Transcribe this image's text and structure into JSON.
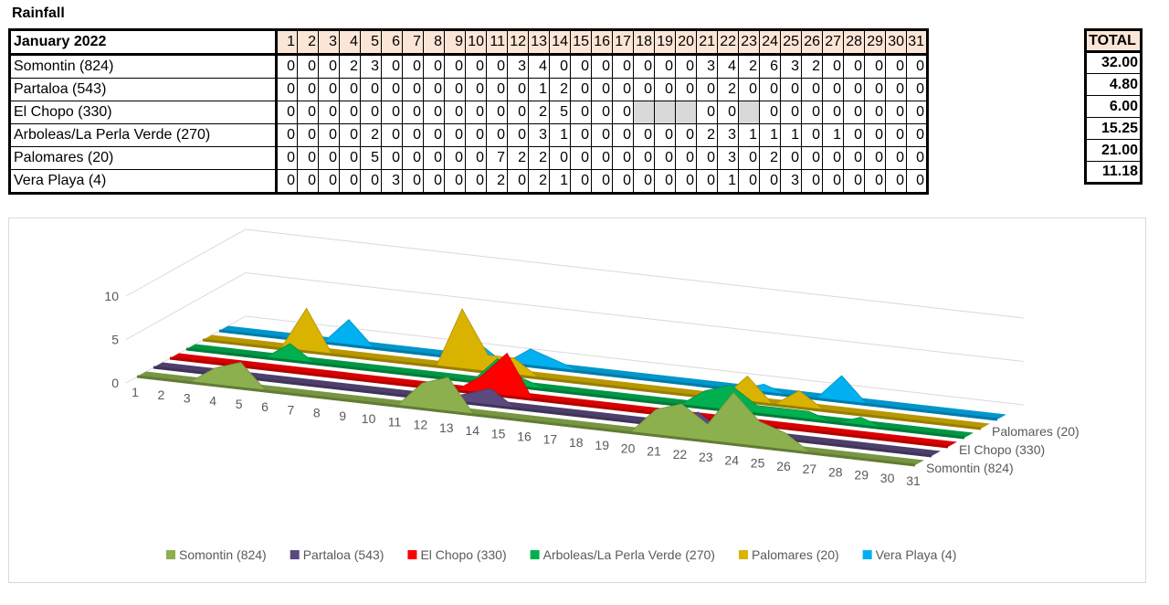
{
  "title": "Rainfall",
  "table": {
    "month_label": "January 2022",
    "days": [
      "1",
      "2",
      "3",
      "4",
      "5",
      "6",
      "7",
      "8",
      "9",
      "10",
      "11",
      "12",
      "13",
      "14",
      "15",
      "16",
      "17",
      "18",
      "19",
      "20",
      "21",
      "22",
      "23",
      "24",
      "25",
      "26",
      "27",
      "28",
      "29",
      "30",
      "31"
    ],
    "total_label": "TOTAL",
    "rows": [
      {
        "name": "Somontin (824)",
        "values": [
          "0",
          "0",
          "0",
          "2",
          "3",
          "0",
          "0",
          "0",
          "0",
          "0",
          "0",
          "3",
          "4",
          "0",
          "0",
          "0",
          "0",
          "0",
          "0",
          "0",
          "3",
          "4",
          "2",
          "6",
          "3",
          "2",
          "0",
          "0",
          "0",
          "0",
          "0"
        ],
        "total": "32.00"
      },
      {
        "name": "Partaloa (543)",
        "values": [
          "0",
          "0",
          "0",
          "0",
          "0",
          "0",
          "0",
          "0",
          "0",
          "0",
          "0",
          "0",
          "1",
          "2",
          "0",
          "0",
          "0",
          "0",
          "0",
          "0",
          "0",
          "2",
          "0",
          "0",
          "0",
          "0",
          "0",
          "0",
          "0",
          "0",
          "0"
        ],
        "total": "4.80"
      },
      {
        "name": "El Chopo (330)",
        "values": [
          "0",
          "0",
          "0",
          "0",
          "0",
          "0",
          "0",
          "0",
          "0",
          "0",
          "0",
          "0",
          "2",
          "5",
          "0",
          "0",
          "0",
          "",
          "",
          "",
          "0",
          "0",
          "",
          "0",
          "0",
          "0",
          "0",
          "0",
          "0",
          "0",
          "0"
        ],
        "total": "6.00"
      },
      {
        "name": "Arboleas/La Perla Verde (270)",
        "values": [
          "0",
          "0",
          "0",
          "0",
          "2",
          "0",
          "0",
          "0",
          "0",
          "0",
          "0",
          "0",
          "3",
          "1",
          "0",
          "0",
          "0",
          "0",
          "0",
          "0",
          "2",
          "3",
          "1",
          "1",
          "1",
          "0",
          "1",
          "0",
          "0",
          "0",
          "0"
        ],
        "total": "15.25"
      },
      {
        "name": "Palomares (20)",
        "values": [
          "0",
          "0",
          "0",
          "0",
          "5",
          "0",
          "0",
          "0",
          "0",
          "0",
          "7",
          "2",
          "2",
          "0",
          "0",
          "0",
          "0",
          "0",
          "0",
          "0",
          "0",
          "3",
          "0",
          "2",
          "0",
          "0",
          "0",
          "0",
          "0",
          "0",
          "0"
        ],
        "total": "21.00"
      },
      {
        "name": "Vera Playa (4)",
        "values": [
          "0",
          "0",
          "0",
          "0",
          "0",
          "3",
          "0",
          "0",
          "0",
          "0",
          "2",
          "0",
          "2",
          "1",
          "0",
          "0",
          "0",
          "0",
          "0",
          "0",
          "0",
          "1",
          "0",
          "0",
          "3",
          "0",
          "0",
          "0",
          "0",
          "0",
          "0"
        ],
        "total": "11.18"
      }
    ]
  },
  "chart_data": {
    "type": "area",
    "x": [
      1,
      2,
      3,
      4,
      5,
      6,
      7,
      8,
      9,
      10,
      11,
      12,
      13,
      14,
      15,
      16,
      17,
      18,
      19,
      20,
      21,
      22,
      23,
      24,
      25,
      26,
      27,
      28,
      29,
      30,
      31
    ],
    "ylim": [
      0,
      10
    ],
    "yticks": [
      "0",
      "5",
      "10"
    ],
    "xticks": [
      "1",
      "2",
      "3",
      "4",
      "5",
      "6",
      "7",
      "8",
      "9",
      "10",
      "11",
      "12",
      "13",
      "14",
      "15",
      "16",
      "17",
      "18",
      "19",
      "20",
      "21",
      "22",
      "23",
      "24",
      "25",
      "26",
      "27",
      "28",
      "29",
      "30",
      "31"
    ],
    "depth_labels": [
      "Palomares (20)",
      "El Chopo (330)",
      "Somontin (824)"
    ],
    "legend_position": "bottom",
    "series": [
      {
        "name": "Somontin (824)",
        "color": "#8cb04d",
        "values": [
          0,
          0,
          0,
          2,
          3,
          0,
          0,
          0,
          0,
          0,
          0,
          3,
          4,
          0,
          0,
          0,
          0,
          0,
          0,
          0,
          3,
          4,
          2,
          6,
          3,
          2,
          0,
          0,
          0,
          0,
          0
        ]
      },
      {
        "name": "Partaloa (543)",
        "color": "#5b4a7e",
        "values": [
          0,
          0,
          0,
          0,
          0,
          0,
          0,
          0,
          0,
          0,
          0,
          0,
          1,
          2,
          0,
          0,
          0,
          0,
          0,
          0,
          0,
          2,
          0,
          0,
          0,
          0,
          0,
          0,
          0,
          0,
          0
        ]
      },
      {
        "name": "El Chopo (330)",
        "color": "#ff0000",
        "values": [
          0,
          0,
          0,
          0,
          0,
          0,
          0,
          0,
          0,
          0,
          0,
          0,
          2,
          5,
          0,
          0,
          0,
          0,
          0,
          0,
          0,
          0,
          0,
          0,
          0,
          0,
          0,
          0,
          0,
          0,
          0
        ]
      },
      {
        "name": "Arboleas/La Perla Verde (270)",
        "color": "#00b050",
        "values": [
          0,
          0,
          0,
          0,
          2,
          0,
          0,
          0,
          0,
          0,
          0,
          0,
          3,
          1,
          0,
          0,
          0,
          0,
          0,
          0,
          2,
          3,
          1,
          1,
          1,
          0,
          1,
          0,
          0,
          0,
          0
        ]
      },
      {
        "name": "Palomares (20)",
        "color": "#d9b300",
        "values": [
          0,
          0,
          0,
          0,
          5,
          0,
          0,
          0,
          0,
          0,
          7,
          2,
          2,
          0,
          0,
          0,
          0,
          0,
          0,
          0,
          0,
          3,
          0,
          2,
          0,
          0,
          0,
          0,
          0,
          0,
          0
        ]
      },
      {
        "name": "Vera Playa (4)",
        "color": "#00b0f0",
        "values": [
          0,
          0,
          0,
          0,
          0,
          3,
          0,
          0,
          0,
          0,
          2,
          0,
          2,
          1,
          0,
          0,
          0,
          0,
          0,
          0,
          0,
          1,
          0,
          0,
          3,
          0,
          0,
          0,
          0,
          0,
          0
        ]
      }
    ]
  }
}
